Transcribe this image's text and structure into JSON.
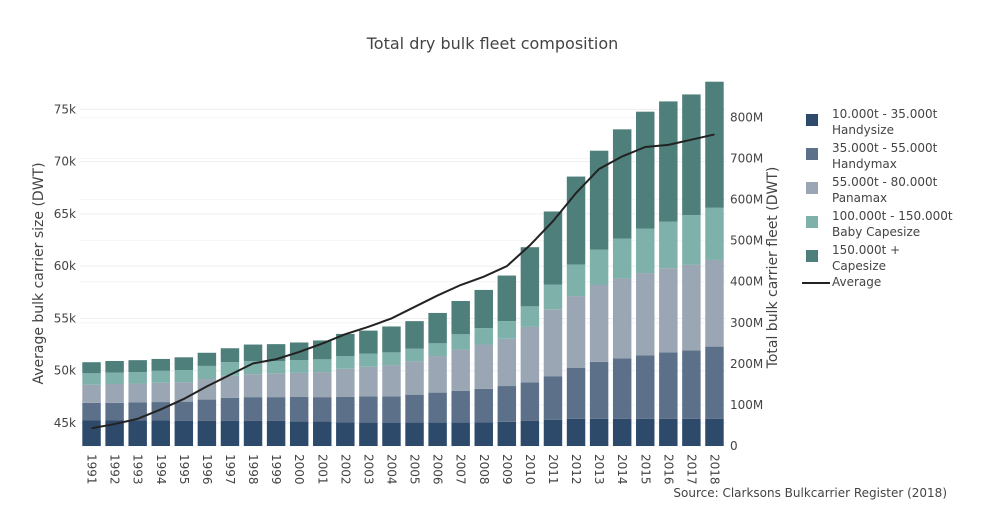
{
  "title": "Total dry bulk fleet composition",
  "source": "Source: Clarksons Bulkcarrier Register (2018)",
  "chart_data": {
    "type": "bar",
    "stacked": true,
    "categories": [
      "1991",
      "1992",
      "1993",
      "1994",
      "1995",
      "1996",
      "1997",
      "1998",
      "1999",
      "2000",
      "2001",
      "2002",
      "2003",
      "2004",
      "2005",
      "2006",
      "2007",
      "2008",
      "2009",
      "2010",
      "2011",
      "2012",
      "2013",
      "2014",
      "2015",
      "2016",
      "2017",
      "2018"
    ],
    "series": [
      {
        "name": "10.000t - 35.000t\nHandysize",
        "color": "#2e4a6b",
        "axis": "y2",
        "values": [
          63,
          63,
          62,
          62,
          61,
          61,
          61,
          61,
          61,
          60,
          60,
          58,
          57,
          56,
          57,
          57,
          57,
          58,
          59,
          61,
          64,
          66,
          66,
          66,
          66,
          66,
          66,
          66
        ]
      },
      {
        "name": "35.000t - 55.000t\nHandymax",
        "color": "#5c7189",
        "axis": "y2",
        "values": [
          42,
          42,
          44,
          45,
          47,
          52,
          56,
          58,
          58,
          60,
          59,
          62,
          64,
          65,
          68,
          73,
          77,
          81,
          87,
          94,
          106,
          124,
          139,
          147,
          155,
          162,
          167,
          176
        ]
      },
      {
        "name": "55.000t - 80.000t\nPanamax",
        "color": "#9aa6b3",
        "axis": "y2",
        "values": [
          44,
          46,
          46,
          47,
          47,
          50,
          54,
          56,
          57,
          58,
          61,
          68,
          72,
          76,
          81,
          89,
          100,
          108,
          115,
          135,
          163,
          175,
          187,
          195,
          200,
          205,
          208,
          211
        ]
      },
      {
        "name": "100.000t - 150.000t\nBaby Capesize",
        "color": "#7fb1ab",
        "axis": "y2",
        "values": [
          28,
          28,
          28,
          29,
          30,
          32,
          33,
          32,
          31,
          31,
          31,
          31,
          32,
          31,
          31,
          31,
          38,
          40,
          43,
          50,
          60,
          77,
          86,
          97,
          108,
          113,
          121,
          127
        ]
      },
      {
        "name": "150.000t +\nCapesize",
        "color": "#4e7f7a",
        "axis": "y2",
        "values": [
          27,
          28,
          29,
          29,
          31,
          32,
          34,
          40,
          41,
          43,
          46,
          54,
          56,
          63,
          67,
          74,
          81,
          93,
          111,
          144,
          178,
          214,
          241,
          266,
          285,
          293,
          294,
          307
        ]
      }
    ],
    "line": {
      "name": "Average",
      "color": "#222222",
      "axis": "y",
      "values": [
        44500,
        44900,
        45400,
        46300,
        47300,
        48500,
        49600,
        50700,
        51100,
        51800,
        52600,
        53500,
        54200,
        55000,
        56100,
        57200,
        58200,
        59000,
        60000,
        62000,
        64300,
        67000,
        69300,
        70500,
        71400,
        71600,
        72100,
        72600
      ]
    },
    "ylabel": "Average bulk carrier size (DWT)",
    "y2label": "Total bulk carrier fleet (DWT)",
    "ylim": [
      42800,
      75800
    ],
    "y2lim": [
      0,
      840
    ],
    "yticks": [
      45000,
      50000,
      55000,
      60000,
      65000,
      70000,
      75000
    ],
    "yticklabels": [
      "45k",
      "50k",
      "55k",
      "60k",
      "65k",
      "70k",
      "75k"
    ],
    "y2ticks": [
      0,
      100,
      200,
      300,
      400,
      500,
      600,
      700,
      800
    ],
    "y2ticklabels": [
      "0",
      "100M",
      "200M",
      "300M",
      "400M",
      "500M",
      "600M",
      "700M",
      "800M"
    ],
    "legend_position": "right",
    "grid": true
  }
}
